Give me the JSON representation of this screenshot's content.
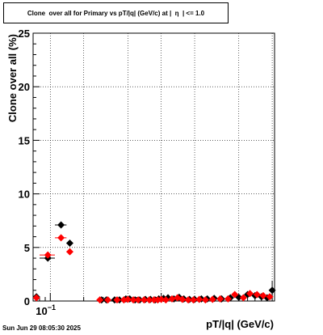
{
  "chart_data": {
    "type": "scatter",
    "title": "Clone  over all for Primary vs pT/|q| (GeV/c) at |  η  | <= 1.0",
    "xlabel": "pT/|q| (GeV/c)",
    "ylabel": "Clone  over all (%)",
    "x_scale": "log",
    "xlim": [
      0.07,
      10.5
    ],
    "ylim": [
      0,
      25
    ],
    "grid": true,
    "y_ticks": [
      0,
      5,
      10,
      15,
      20,
      25
    ],
    "y_tick_labels": [
      "0",
      "5",
      "10",
      "15",
      "20",
      "25"
    ],
    "x_tick_labels": [
      {
        "base": "10",
        "exp": "−1",
        "value": 0.1
      }
    ],
    "series": [
      {
        "color": "#000000",
        "marker": "diamond",
        "points": [
          {
            "x": 0.075,
            "y": 0.4,
            "xlo": 0.07,
            "xhi": 0.08
          },
          {
            "x": 0.095,
            "y": 4.0,
            "xlo": 0.08,
            "xhi": 0.11,
            "yerr": 0.3
          },
          {
            "x": 0.125,
            "y": 7.1,
            "xlo": 0.11,
            "xhi": 0.14
          },
          {
            "x": 0.15,
            "y": 5.4,
            "xlo": 0.14,
            "xhi": 0.16
          },
          {
            "x": 0.29,
            "y": 0.1
          },
          {
            "x": 0.32,
            "y": 0.1
          },
          {
            "x": 0.38,
            "y": 0.1
          },
          {
            "x": 0.42,
            "y": 0.1
          },
          {
            "x": 0.48,
            "y": 0.2
          },
          {
            "x": 0.52,
            "y": 0.2
          },
          {
            "x": 0.58,
            "y": 0.1
          },
          {
            "x": 0.64,
            "y": 0.1
          },
          {
            "x": 0.72,
            "y": 0.15
          },
          {
            "x": 0.8,
            "y": 0.15
          },
          {
            "x": 0.88,
            "y": 0.1
          },
          {
            "x": 0.95,
            "y": 0.2
          },
          {
            "x": 1.05,
            "y": 0.25
          },
          {
            "x": 1.15,
            "y": 0.3
          },
          {
            "x": 1.3,
            "y": 0.2
          },
          {
            "x": 1.45,
            "y": 0.35
          },
          {
            "x": 1.6,
            "y": 0.2
          },
          {
            "x": 1.8,
            "y": 0.15
          },
          {
            "x": 2.0,
            "y": 0.15
          },
          {
            "x": 2.3,
            "y": 0.2
          },
          {
            "x": 2.6,
            "y": 0.2
          },
          {
            "x": 3.0,
            "y": 0.25
          },
          {
            "x": 3.5,
            "y": 0.2
          },
          {
            "x": 4.2,
            "y": 0.3
          },
          {
            "x": 5.0,
            "y": 0.35
          },
          {
            "x": 6.0,
            "y": 0.6
          },
          {
            "x": 7.0,
            "y": 0.5
          },
          {
            "x": 8.0,
            "y": 0.4
          },
          {
            "x": 9.0,
            "y": 0.3
          },
          {
            "x": 10.0,
            "y": 1.0,
            "yerr": 0.9
          }
        ]
      },
      {
        "color": "#ff0000",
        "marker": "diamond",
        "points": [
          {
            "x": 0.075,
            "y": 0.3,
            "xlo": 0.07,
            "xhi": 0.08
          },
          {
            "x": 0.095,
            "y": 4.3,
            "xlo": 0.08,
            "xhi": 0.11
          },
          {
            "x": 0.125,
            "y": 5.9,
            "xlo": 0.11,
            "xhi": 0.14
          },
          {
            "x": 0.15,
            "y": 4.6,
            "xlo": 0.14,
            "xhi": 0.16
          },
          {
            "x": 0.28,
            "y": 0.1
          },
          {
            "x": 0.33,
            "y": 0.1
          },
          {
            "x": 0.4,
            "y": 0.1
          },
          {
            "x": 0.46,
            "y": 0.1
          },
          {
            "x": 0.5,
            "y": 0.15
          },
          {
            "x": 0.56,
            "y": 0.1
          },
          {
            "x": 0.62,
            "y": 0.1
          },
          {
            "x": 0.7,
            "y": 0.1
          },
          {
            "x": 0.78,
            "y": 0.1
          },
          {
            "x": 0.86,
            "y": 0.1
          },
          {
            "x": 0.93,
            "y": 0.1
          },
          {
            "x": 1.0,
            "y": 0.15
          },
          {
            "x": 1.1,
            "y": 0.1
          },
          {
            "x": 1.25,
            "y": 0.2
          },
          {
            "x": 1.4,
            "y": 0.3
          },
          {
            "x": 1.55,
            "y": 0.15
          },
          {
            "x": 1.75,
            "y": 0.1
          },
          {
            "x": 1.95,
            "y": 0.1
          },
          {
            "x": 2.2,
            "y": 0.15
          },
          {
            "x": 2.5,
            "y": 0.1
          },
          {
            "x": 2.9,
            "y": 0.15
          },
          {
            "x": 3.4,
            "y": 0.2
          },
          {
            "x": 4.0,
            "y": 0.2
          },
          {
            "x": 4.6,
            "y": 0.6
          },
          {
            "x": 5.5,
            "y": 0.3
          },
          {
            "x": 6.3,
            "y": 0.7
          },
          {
            "x": 7.3,
            "y": 0.6
          },
          {
            "x": 8.3,
            "y": 0.5
          },
          {
            "x": 9.5,
            "y": 0.4
          }
        ]
      }
    ]
  },
  "footer": {
    "timestamp": "Sun Jun 29 08:05:30 2025"
  }
}
